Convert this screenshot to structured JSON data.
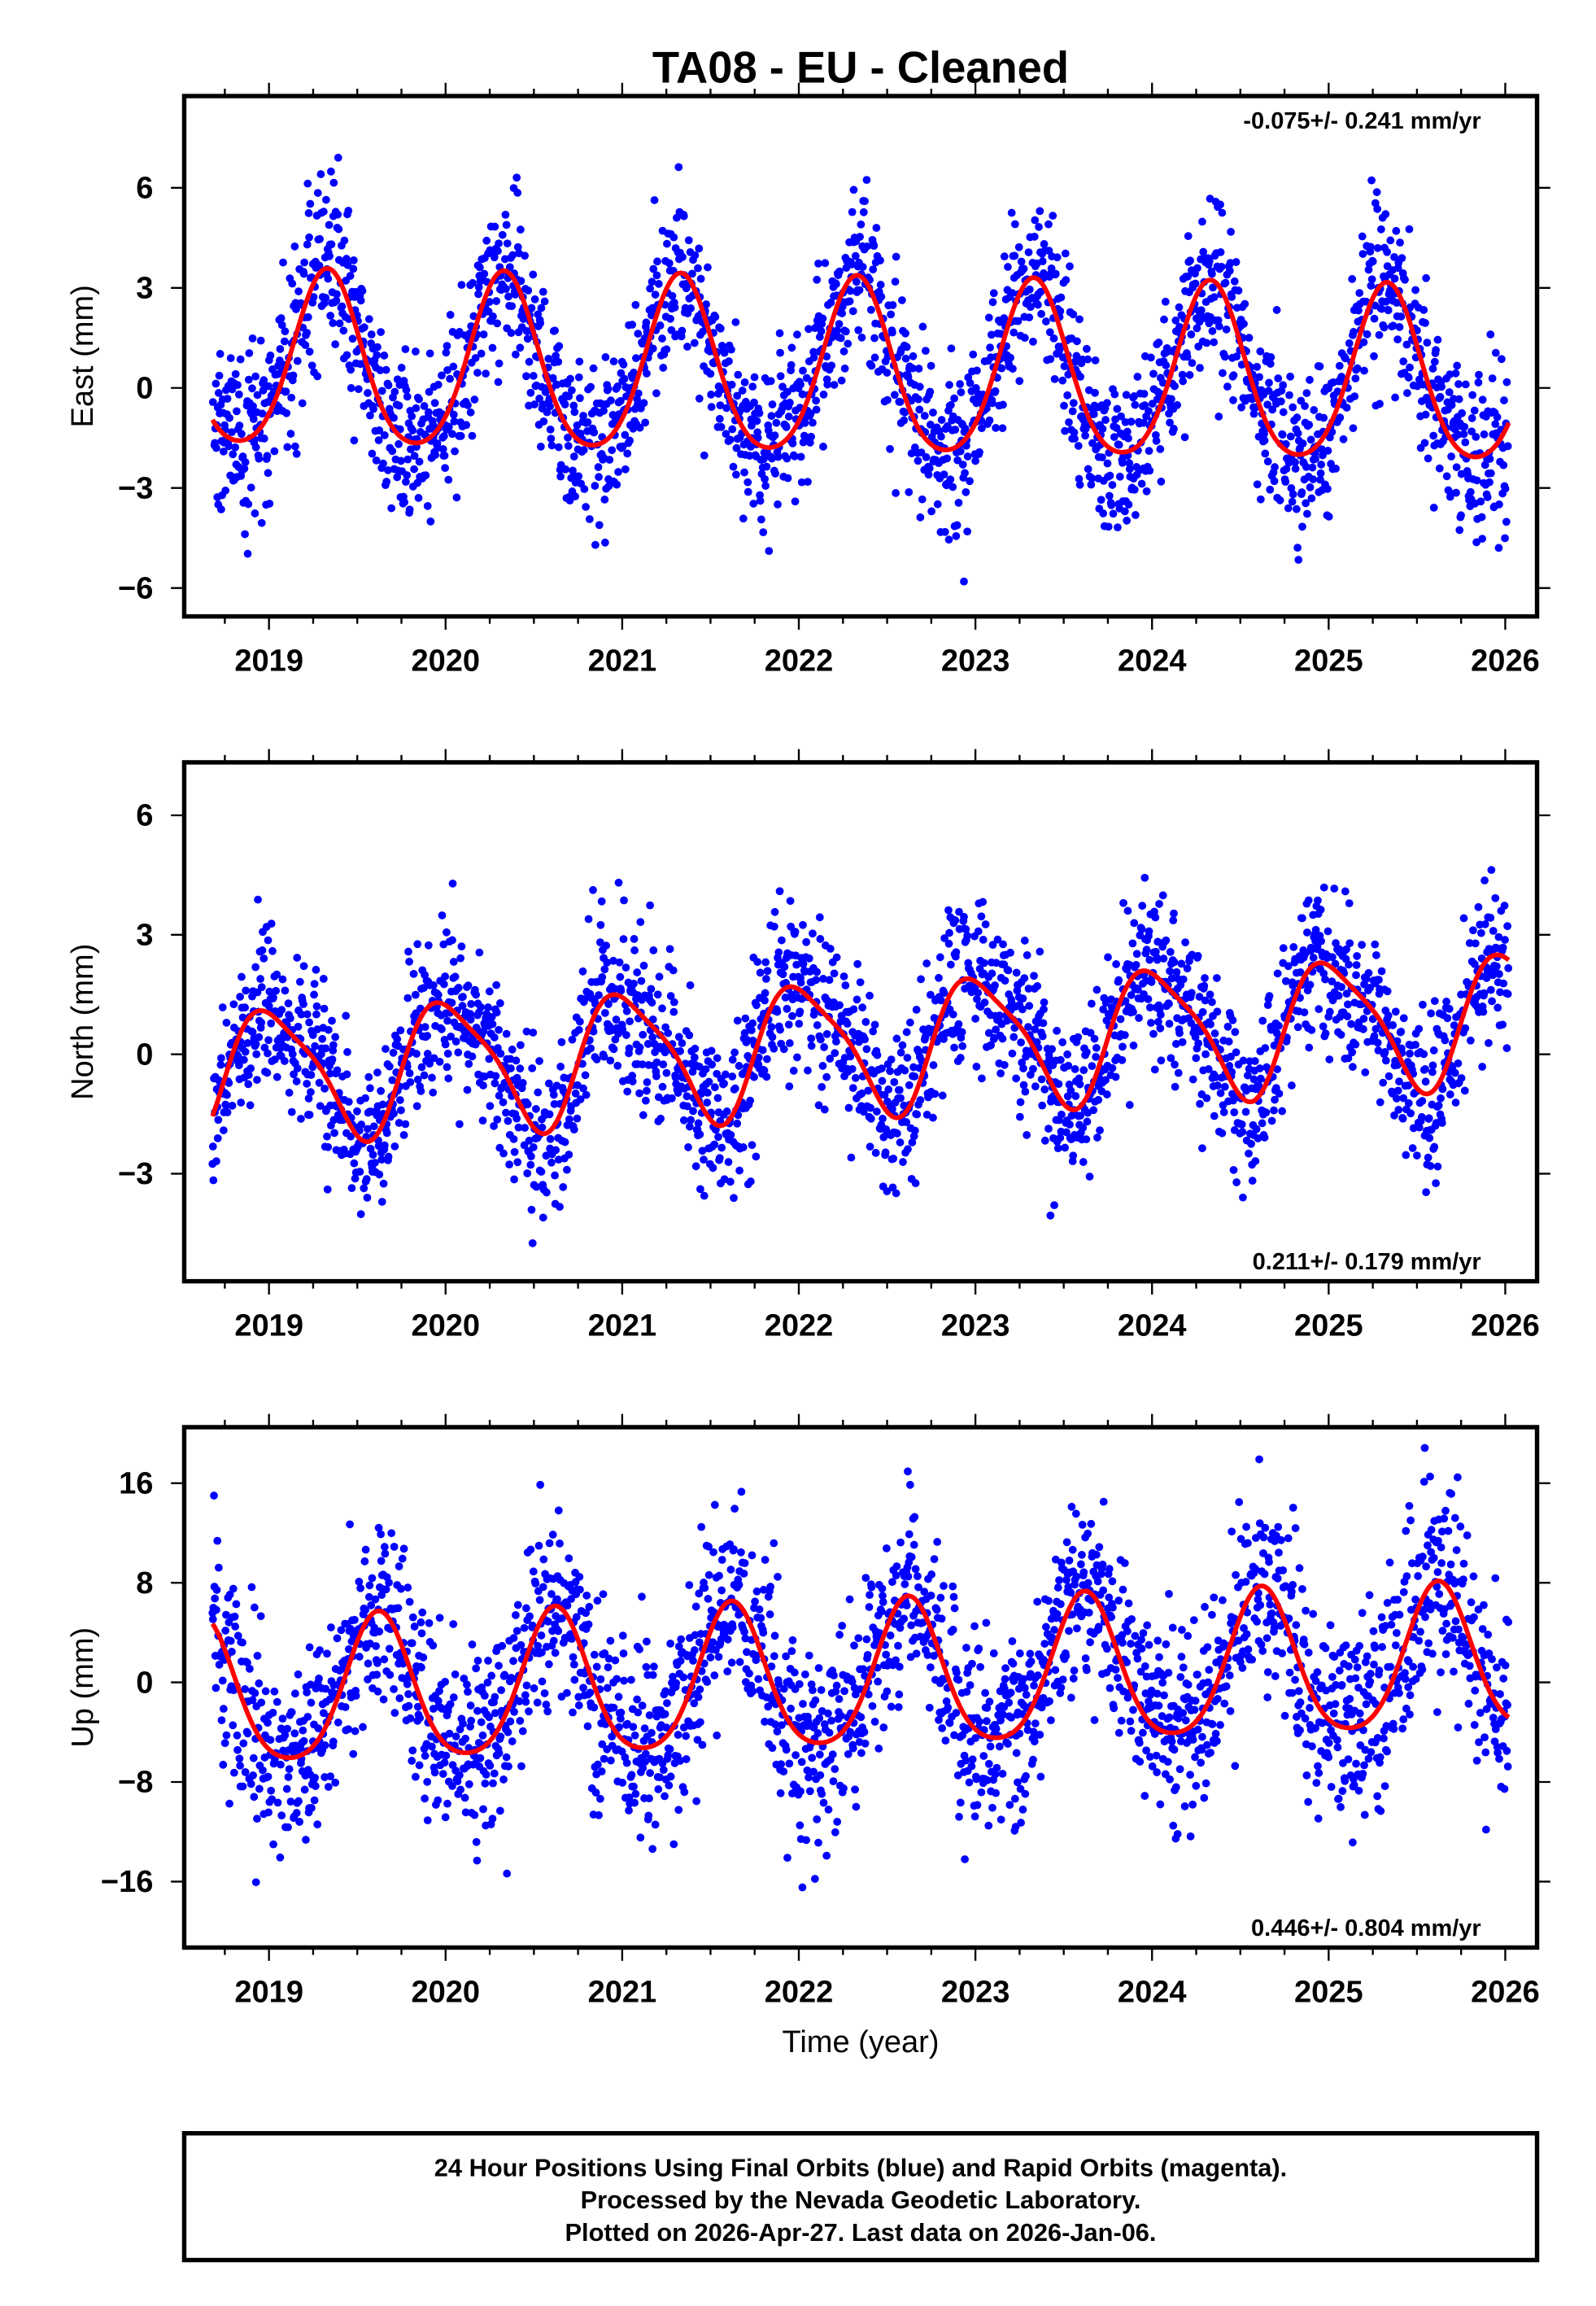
{
  "title": "TA08  - EU - Cleaned",
  "xlabel": "Time (year)",
  "footer": {
    "line1": "24 Hour Positions Using Final Orbits (blue) and Rapid Orbits (magenta).",
    "line2": "Processed by the Nevada Geodetic Laboratory.",
    "line3": "Plotted on 2026-Apr-27. Last data on 2026-Jan-06."
  },
  "colors": {
    "points": "#0000ff",
    "fit": "#ff0000",
    "axes": "#000000"
  },
  "chart_data": [
    {
      "type": "scatter",
      "panel": "east",
      "ylabel": "East (mm)",
      "rate_label": "-0.075+/- 0.241 mm/yr",
      "xlim": [
        2018.52,
        2026.18
      ],
      "ylim": [
        -6.85,
        8.75
      ],
      "xticks": [
        "2019",
        "2020",
        "2021",
        "2022",
        "2023",
        "2024",
        "2025",
        "2026"
      ],
      "yticks": [
        -6,
        -3,
        0,
        3,
        6
      ],
      "ytick_labels": [
        "−6",
        "−3",
        "0",
        "3",
        "6"
      ],
      "x_range": [
        2018.68,
        2026.02
      ],
      "model": {
        "offset": 0.45,
        "trend": -0.07,
        "annual_amp": 2.6,
        "annual_peak": 0.33,
        "semi_amp": 0.35,
        "semi_peak": 0.33,
        "noise_sd": 1.25
      },
      "series": [
        {
          "name": "Final Orbits",
          "color": "#0000ff"
        },
        {
          "name": "Seasonal fit",
          "color": "#ff0000"
        }
      ]
    },
    {
      "type": "scatter",
      "panel": "north",
      "ylabel": "North (mm)",
      "rate_label": "0.211+/- 0.179 mm/yr",
      "xlim": [
        2018.52,
        2026.18
      ],
      "ylim": [
        -5.7,
        7.33
      ],
      "xticks": [
        "2019",
        "2020",
        "2021",
        "2022",
        "2023",
        "2024",
        "2025",
        "2026"
      ],
      "yticks": [
        -3,
        0,
        3,
        6
      ],
      "ytick_labels": [
        "−3",
        "0",
        "3",
        "6"
      ],
      "x_range": [
        2018.68,
        2026.02
      ],
      "model": {
        "offset": 0.15,
        "trend": 0.2,
        "annual_amp": 1.6,
        "annual_peak": 0.02,
        "semi_amp": -0.35,
        "semi_peak": 0.6,
        "noise_sd": 1.0
      },
      "series": [
        {
          "name": "Final Orbits",
          "color": "#0000ff"
        },
        {
          "name": "Seasonal fit",
          "color": "#ff0000"
        }
      ]
    },
    {
      "type": "scatter",
      "panel": "up",
      "ylabel": "Up (mm)",
      "rate_label": "0.446+/- 0.804 mm/yr",
      "xlim": [
        2018.52,
        2026.18
      ],
      "ylim": [
        -21.3,
        20.5
      ],
      "xticks": [
        "2019",
        "2020",
        "2021",
        "2022",
        "2023",
        "2024",
        "2025",
        "2026"
      ],
      "yticks": [
        -16,
        -8,
        0,
        8,
        16
      ],
      "ytick_labels": [
        "−16",
        "−8",
        "0",
        "8",
        "16"
      ],
      "x_range": [
        2018.68,
        2026.02
      ],
      "model": {
        "offset": 0.0,
        "trend": 0.4,
        "annual_amp": 5.8,
        "annual_peak": 0.62,
        "semi_amp": 0.9,
        "semi_peak": 0.62,
        "noise_sd": 4.0
      },
      "series": [
        {
          "name": "Final Orbits",
          "color": "#0000ff"
        },
        {
          "name": "Seasonal fit",
          "color": "#ff0000"
        }
      ]
    }
  ]
}
